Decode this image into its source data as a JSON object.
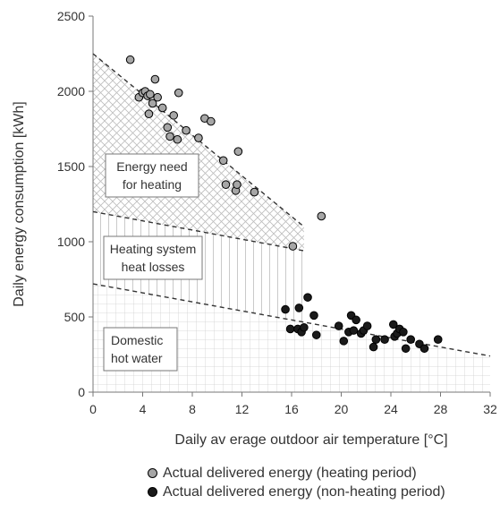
{
  "chart_data": {
    "type": "scatter",
    "xlabel": "Daily av erage outdoor air temperature [°C]",
    "ylabel": "Daily energy consumption [kWh]",
    "xlim": [
      0,
      32
    ],
    "ylim": [
      0,
      2500
    ],
    "xticks": [
      "0",
      "4",
      "8",
      "12",
      "16",
      "20",
      "24",
      "28",
      "32"
    ],
    "yticks": [
      "0",
      "500",
      "1000",
      "1500",
      "2000",
      "2500"
    ],
    "legend_position": "bottom",
    "series": [
      {
        "name": "Actual delivered energy (heating period)",
        "color": "#a6a6a6",
        "points": [
          [
            3.0,
            2210
          ],
          [
            3.7,
            1960
          ],
          [
            4.0,
            1990
          ],
          [
            4.2,
            2000
          ],
          [
            4.4,
            1970
          ],
          [
            4.6,
            1980
          ],
          [
            4.5,
            1850
          ],
          [
            4.8,
            1920
          ],
          [
            5.0,
            2080
          ],
          [
            5.2,
            1960
          ],
          [
            5.6,
            1890
          ],
          [
            6.0,
            1760
          ],
          [
            6.2,
            1700
          ],
          [
            6.5,
            1840
          ],
          [
            6.9,
            1990
          ],
          [
            6.8,
            1680
          ],
          [
            7.5,
            1740
          ],
          [
            8.5,
            1690
          ],
          [
            9.0,
            1820
          ],
          [
            9.5,
            1800
          ],
          [
            10.5,
            1540
          ],
          [
            10.7,
            1380
          ],
          [
            11.5,
            1340
          ],
          [
            11.6,
            1380
          ],
          [
            11.7,
            1600
          ],
          [
            13.0,
            1330
          ],
          [
            16.1,
            970
          ],
          [
            18.4,
            1170
          ]
        ]
      },
      {
        "name": "Actual delivered energy (non-heating period)",
        "color": "#1a1a1a",
        "points": [
          [
            15.5,
            550
          ],
          [
            15.9,
            420
          ],
          [
            16.5,
            420
          ],
          [
            16.6,
            560
          ],
          [
            16.8,
            400
          ],
          [
            17.0,
            430
          ],
          [
            17.3,
            630
          ],
          [
            17.8,
            510
          ],
          [
            18.0,
            380
          ],
          [
            19.8,
            440
          ],
          [
            20.2,
            340
          ],
          [
            20.6,
            400
          ],
          [
            20.8,
            510
          ],
          [
            21.0,
            410
          ],
          [
            21.2,
            480
          ],
          [
            21.6,
            390
          ],
          [
            21.8,
            410
          ],
          [
            22.1,
            440
          ],
          [
            22.6,
            300
          ],
          [
            22.8,
            350
          ],
          [
            23.5,
            350
          ],
          [
            24.2,
            450
          ],
          [
            24.3,
            370
          ],
          [
            24.5,
            390
          ],
          [
            24.7,
            420
          ],
          [
            25.0,
            400
          ],
          [
            25.2,
            290
          ],
          [
            25.6,
            350
          ],
          [
            26.3,
            320
          ],
          [
            26.7,
            290
          ],
          [
            27.8,
            350
          ]
        ]
      }
    ],
    "regions": [
      {
        "label_lines": [
          "Energy need",
          "for heating"
        ],
        "pattern": "crosshatch"
      },
      {
        "label_lines": [
          "Heating system",
          "heat losses"
        ],
        "pattern": "vertical-lines"
      },
      {
        "label_lines": [
          "Domestic",
          "hot water"
        ],
        "pattern": "grid"
      }
    ],
    "trend_lines": [
      {
        "name": "heating",
        "from": [
          0,
          2250
        ],
        "to": [
          17,
          1100
        ]
      },
      {
        "name": "losses",
        "from": [
          0,
          1200
        ],
        "to": [
          17,
          940
        ]
      },
      {
        "name": "dhw",
        "from": [
          0,
          720
        ],
        "to": [
          32,
          240
        ]
      }
    ]
  }
}
